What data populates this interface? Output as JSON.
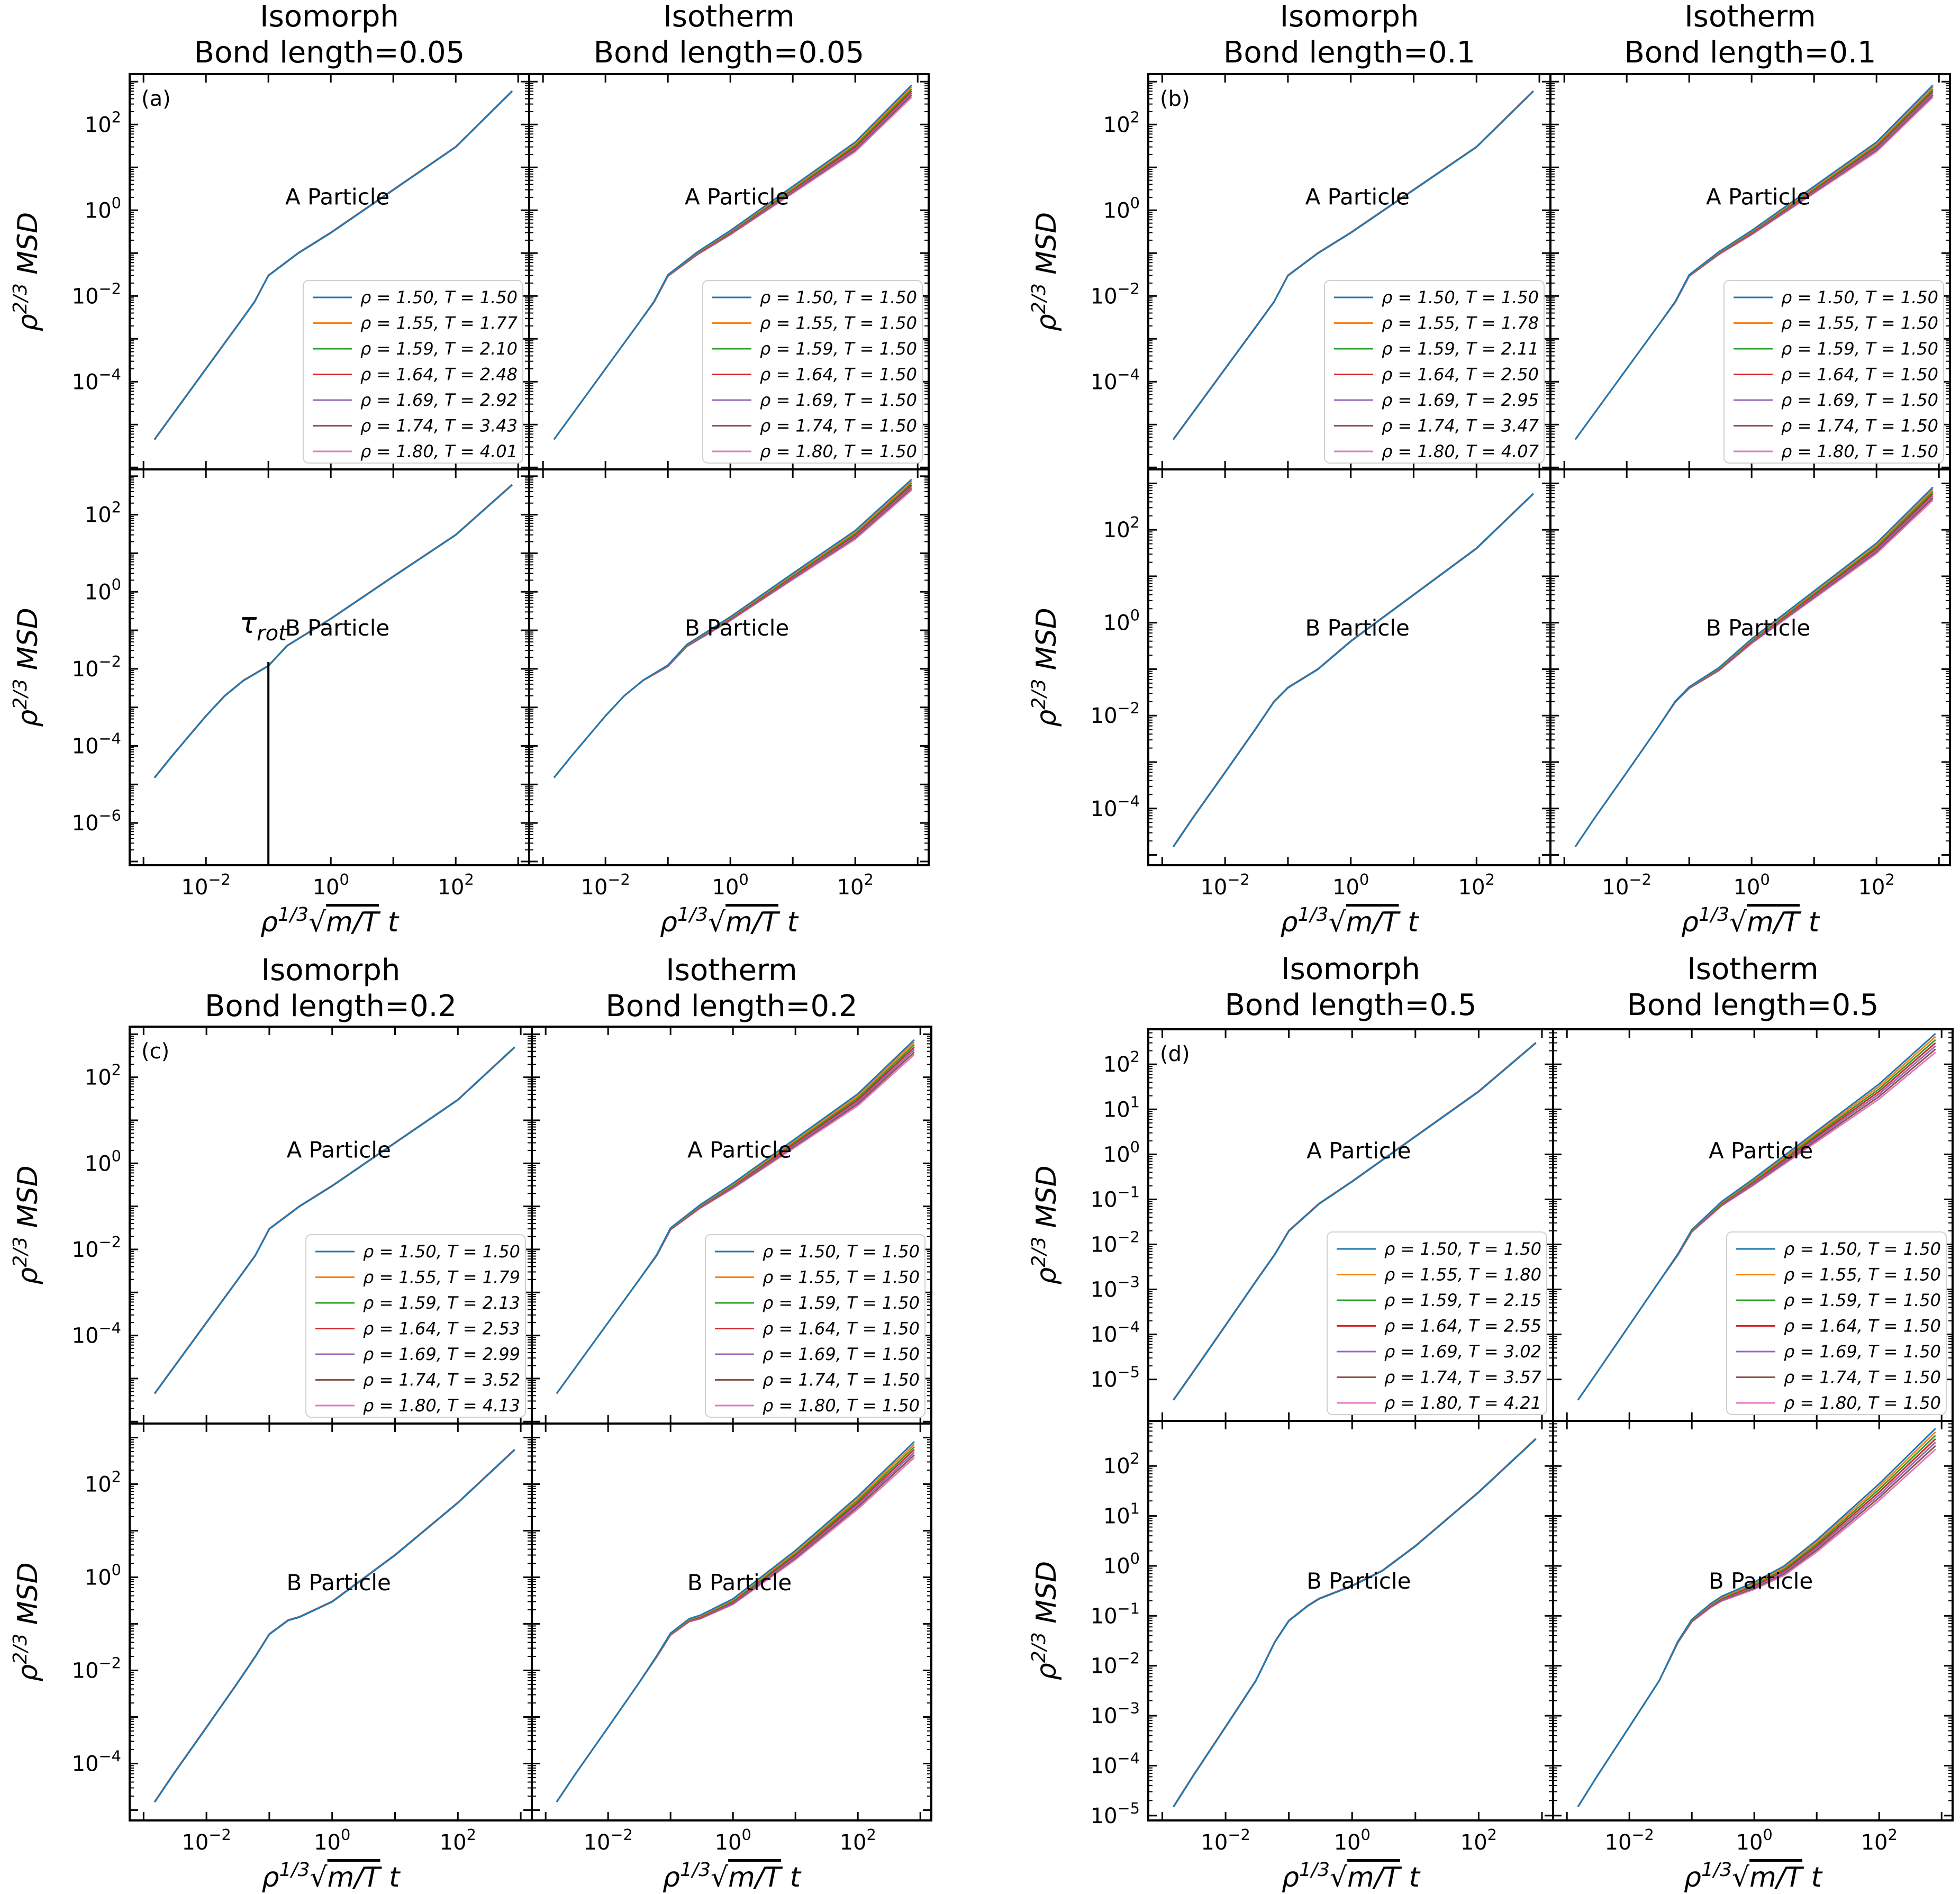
{
  "figure": {
    "series_colors": [
      "#1f77b4",
      "#ff7f0e",
      "#2ca02c",
      "#d62728",
      "#9467bd",
      "#8c564b",
      "#e377c2"
    ],
    "ylabel": "ρ^{2/3} MSD",
    "xlabel": "ρ^{1/3}√(m/T) t",
    "iso_label": "Isomorph",
    "isot_label": "Isotherm"
  },
  "chart_data": [
    {
      "type": "line",
      "panel": "(a)",
      "bond_length_title": "Bond length=0.05",
      "x_scale": "log",
      "xlim": [
        0.0006,
        1500
      ],
      "xticks": [
        "10^-2",
        "10^0",
        "10^2"
      ],
      "curve_x_range": [
        0.0015,
        800
      ],
      "rows": [
        {
          "particle": "A Particle",
          "ylim": [
            9e-07,
            1500
          ],
          "yticks": [
            "10^-4",
            "10^-2",
            "10^0",
            "10^2"
          ],
          "iso_legend": [
            "ρ = 1.50, T = 1.50",
            "ρ = 1.55, T = 1.77",
            "ρ = 1.59, T = 2.10",
            "ρ = 1.64, T = 2.48",
            "ρ = 1.69, T = 2.92",
            "ρ = 1.74, T = 3.43",
            "ρ = 1.80, T = 4.01"
          ],
          "isot_legend": [
            "ρ = 1.50, T = 1.50",
            "ρ = 1.55, T = 1.50",
            "ρ = 1.59, T = 1.50",
            "ρ = 1.64, T = 1.50",
            "ρ = 1.69, T = 1.50",
            "ρ = 1.74, T = 1.50",
            "ρ = 1.80, T = 1.50"
          ],
          "iso_curve": {
            "x": [
              0.0015,
              0.003,
              0.01,
              0.03,
              0.06,
              0.1,
              0.3,
              1,
              10,
              100,
              800
            ],
            "y": [
              4.5e-06,
              1.8e-05,
              0.0002,
              0.0018,
              0.0073,
              0.03,
              0.1,
              0.3,
              3,
              30,
              600
            ]
          },
          "isot_spread": 1.9
        },
        {
          "particle": "B Particle",
          "ylim": [
            8e-08,
            1500
          ],
          "yticks": [
            "10^-6",
            "10^-4",
            "10^-2",
            "10^0",
            "10^2"
          ],
          "annotation": "τ_rot",
          "annotation_x": 0.1,
          "iso_curve": {
            "x": [
              0.0015,
              0.003,
              0.01,
              0.02,
              0.04,
              0.1,
              0.2,
              1,
              10,
              100,
              800
            ],
            "y": [
              1.5e-05,
              6e-05,
              0.0006,
              0.002,
              0.005,
              0.012,
              0.04,
              0.2,
              2.5,
              30,
              600
            ]
          },
          "isot_spread": 1.9
        }
      ]
    },
    {
      "type": "line",
      "panel": "(b)",
      "bond_length_title": "Bond length=0.1",
      "x_scale": "log",
      "xlim": [
        0.0006,
        1500
      ],
      "xticks": [
        "10^-2",
        "10^0",
        "10^2"
      ],
      "curve_x_range": [
        0.0015,
        800
      ],
      "rows": [
        {
          "particle": "A Particle",
          "ylim": [
            9e-07,
            1500
          ],
          "yticks": [
            "10^-4",
            "10^-2",
            "10^0",
            "10^2"
          ],
          "iso_legend": [
            "ρ = 1.50, T = 1.50",
            "ρ = 1.55, T = 1.78",
            "ρ = 1.59, T = 2.11",
            "ρ = 1.64, T = 2.50",
            "ρ = 1.69, T = 2.95",
            "ρ = 1.74, T = 3.47",
            "ρ = 1.80, T = 4.07"
          ],
          "isot_legend": [
            "ρ = 1.50, T = 1.50",
            "ρ = 1.55, T = 1.50",
            "ρ = 1.59, T = 1.50",
            "ρ = 1.64, T = 1.50",
            "ρ = 1.69, T = 1.50",
            "ρ = 1.74, T = 1.50",
            "ρ = 1.80, T = 1.50"
          ],
          "iso_curve": {
            "x": [
              0.0015,
              0.003,
              0.01,
              0.03,
              0.06,
              0.1,
              0.3,
              1,
              10,
              100,
              800
            ],
            "y": [
              4.5e-06,
              1.8e-05,
              0.0002,
              0.0018,
              0.0073,
              0.03,
              0.1,
              0.3,
              3,
              30,
              600
            ]
          },
          "isot_spread": 1.9
        },
        {
          "particle": "B Particle",
          "ylim": [
            6e-06,
            2000
          ],
          "yticks": [
            "10^-4",
            "10^-2",
            "10^0",
            "10^2"
          ],
          "iso_curve": {
            "x": [
              0.0015,
              0.003,
              0.01,
              0.03,
              0.06,
              0.1,
              0.3,
              1,
              10,
              100,
              800
            ],
            "y": [
              1.5e-05,
              6e-05,
              0.0006,
              0.005,
              0.02,
              0.04,
              0.1,
              0.4,
              4,
              40,
              600
            ]
          },
          "isot_spread": 1.9
        }
      ]
    },
    {
      "type": "line",
      "panel": "(c)",
      "bond_length_title": "Bond length=0.2",
      "x_scale": "log",
      "xlim": [
        0.0006,
        1500
      ],
      "xticks": [
        "10^-2",
        "10^0",
        "10^2"
      ],
      "curve_x_range": [
        0.0015,
        800
      ],
      "rows": [
        {
          "particle": "A Particle",
          "ylim": [
            9e-07,
            1500
          ],
          "yticks": [
            "10^-4",
            "10^-2",
            "10^0",
            "10^2"
          ],
          "iso_legend": [
            "ρ = 1.50, T = 1.50",
            "ρ = 1.55, T = 1.79",
            "ρ = 1.59, T = 2.13",
            "ρ = 1.64, T = 2.53",
            "ρ = 1.69, T = 2.99",
            "ρ = 1.74, T = 3.52",
            "ρ = 1.80, T = 4.13"
          ],
          "isot_legend": [
            "ρ = 1.50, T = 1.50",
            "ρ = 1.55, T = 1.50",
            "ρ = 1.59, T = 1.50",
            "ρ = 1.64, T = 1.50",
            "ρ = 1.69, T = 1.50",
            "ρ = 1.74, T = 1.50",
            "ρ = 1.80, T = 1.50"
          ],
          "iso_curve": {
            "x": [
              0.0015,
              0.003,
              0.01,
              0.03,
              0.06,
              0.1,
              0.3,
              1,
              10,
              100,
              800
            ],
            "y": [
              4.5e-06,
              1.8e-05,
              0.0002,
              0.0018,
              0.0073,
              0.03,
              0.1,
              0.3,
              3,
              30,
              500
            ]
          },
          "isot_spread": 2.2
        },
        {
          "particle": "B Particle",
          "ylim": [
            6e-06,
            2000
          ],
          "yticks": [
            "10^-4",
            "10^-2",
            "10^0",
            "10^2"
          ],
          "iso_curve": {
            "x": [
              0.0015,
              0.003,
              0.01,
              0.03,
              0.06,
              0.1,
              0.2,
              0.3,
              1,
              10,
              100,
              800
            ],
            "y": [
              1.5e-05,
              6e-05,
              0.0006,
              0.005,
              0.02,
              0.06,
              0.12,
              0.14,
              0.3,
              3,
              40,
              550
            ]
          },
          "isot_spread": 2.2
        }
      ]
    },
    {
      "type": "line",
      "panel": "(d)",
      "bond_length_title": "Bond length=0.5",
      "x_scale": "log",
      "xlim": [
        0.0006,
        1500
      ],
      "xticks": [
        "10^-2",
        "10^0",
        "10^2"
      ],
      "curve_x_range": [
        0.0015,
        800
      ],
      "rows": [
        {
          "particle": "A Particle",
          "ylim": [
            1.2e-06,
            600
          ],
          "yticks": [
            "10^-5",
            "10^-4",
            "10^-3",
            "10^-2",
            "10^-1",
            "10^0",
            "10^1",
            "10^2"
          ],
          "iso_legend": [
            "ρ = 1.50, T = 1.50",
            "ρ = 1.55, T = 1.80",
            "ρ = 1.59, T = 2.15",
            "ρ = 1.64, T = 2.55",
            "ρ = 1.69, T = 3.02",
            "ρ = 1.74, T = 3.57",
            "ρ = 1.80, T = 4.21"
          ],
          "isot_legend": [
            "ρ = 1.50, T = 1.50",
            "ρ = 1.55, T = 1.50",
            "ρ = 1.59, T = 1.50",
            "ρ = 1.64, T = 1.50",
            "ρ = 1.69, T = 1.50",
            "ρ = 1.74, T = 1.50",
            "ρ = 1.80, T = 1.50"
          ],
          "iso_curve": {
            "x": [
              0.0015,
              0.003,
              0.01,
              0.03,
              0.06,
              0.1,
              0.3,
              1,
              10,
              100,
              800
            ],
            "y": [
              3.5e-06,
              1.4e-05,
              0.00016,
              0.0015,
              0.006,
              0.02,
              0.08,
              0.25,
              2.5,
              25,
              300
            ]
          },
          "isot_spread": 2.6
        },
        {
          "particle": "B Particle",
          "ylim": [
            8e-06,
            800
          ],
          "yticks": [
            "10^-5",
            "10^-4",
            "10^-3",
            "10^-2",
            "10^-1",
            "10^0",
            "10^1",
            "10^2"
          ],
          "iso_curve": {
            "x": [
              0.0015,
              0.003,
              0.01,
              0.03,
              0.06,
              0.1,
              0.2,
              0.3,
              1,
              3,
              10,
              100,
              800
            ],
            "y": [
              1.5e-05,
              6e-05,
              0.0006,
              0.005,
              0.03,
              0.08,
              0.16,
              0.22,
              0.4,
              0.8,
              2.5,
              30,
              350
            ]
          },
          "isot_spread": 2.6
        }
      ]
    }
  ]
}
